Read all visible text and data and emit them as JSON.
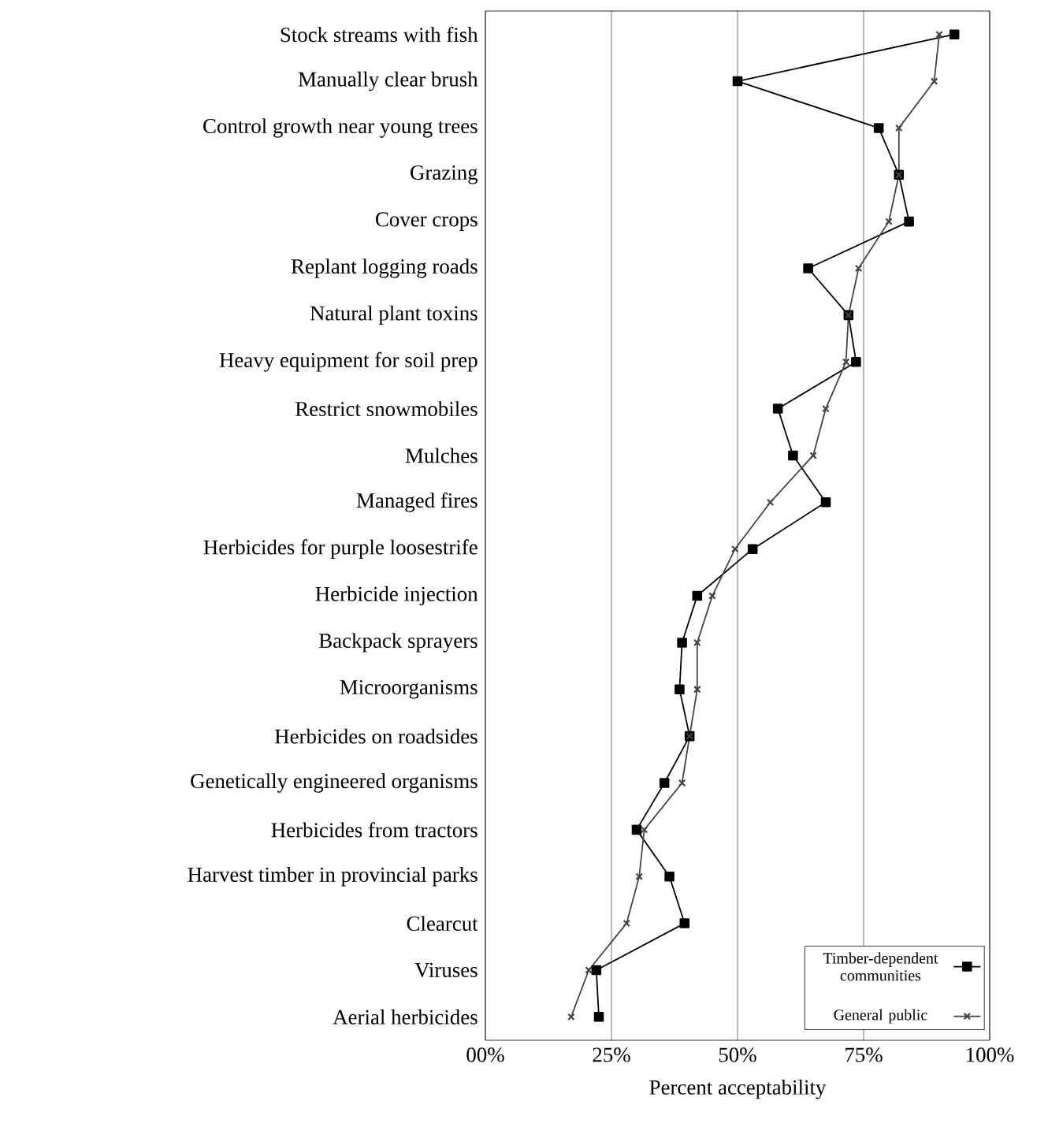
{
  "chart_data": {
    "type": "line",
    "orientation": "horizontal",
    "xlabel": "Percent acceptability",
    "categories": [
      "Stock streams with fish",
      "Manually clear brush",
      "Control growth near young trees",
      "Grazing",
      "Cover crops",
      "Replant logging roads",
      "Natural plant toxins",
      "Heavy equipment for soil prep",
      "Restrict snowmobiles",
      "Mulches",
      "Managed fires",
      "Herbicides for purple loosestrife",
      "Herbicide injection",
      "Backpack sprayers",
      "Microorganisms",
      "Herbicides on roadsides",
      "Genetically engineered organisms",
      "Herbicides from tractors",
      "Harvest timber in provincial parks",
      "Clearcut",
      "Viruses",
      "Aerial herbicides"
    ],
    "series": [
      {
        "name": "Timber-dependent communities",
        "color": "#000000",
        "marker": "square",
        "values": [
          93,
          50,
          78,
          82,
          84,
          64,
          72,
          73.5,
          58,
          61,
          67.5,
          53,
          42,
          39,
          38.5,
          40.5,
          35.5,
          30,
          36.5,
          39.5,
          22,
          22.5
        ]
      },
      {
        "name": "General public",
        "color": "#444444",
        "marker": "cross",
        "values": [
          90,
          89,
          82,
          82,
          80,
          74,
          72,
          71.5,
          67.5,
          65,
          56.5,
          49.5,
          45,
          42,
          42,
          40.5,
          39,
          31.5,
          30.5,
          28,
          20.5,
          17
        ]
      }
    ],
    "xlim": [
      0,
      100
    ],
    "xticks": [
      {
        "value": 0,
        "label": "00%"
      },
      {
        "value": 25,
        "label": "25%"
      },
      {
        "value": 50,
        "label": "50%"
      },
      {
        "value": 75,
        "label": "75%"
      },
      {
        "value": 100,
        "label": "100%"
      }
    ],
    "grid": "x",
    "legend": "bottom right",
    "line_style": "solid"
  }
}
